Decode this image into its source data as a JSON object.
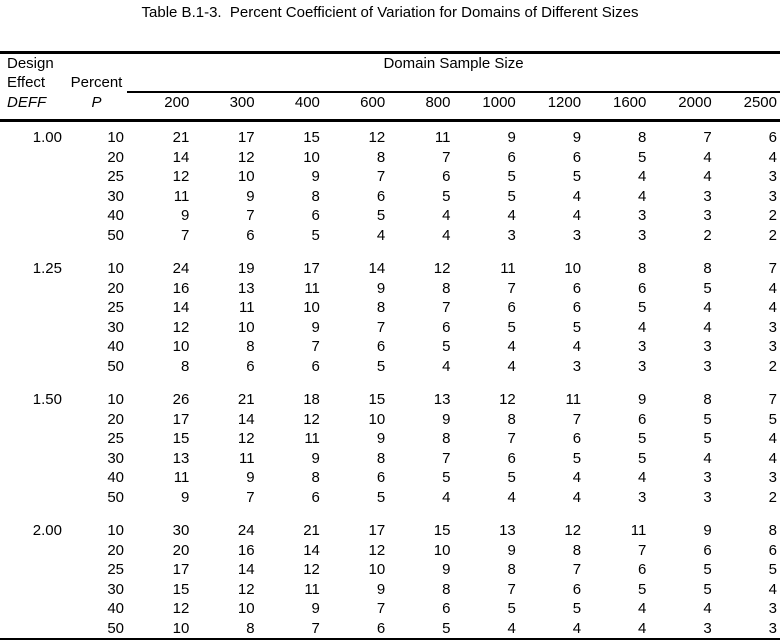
{
  "title": "Table B.1-3.  Percent Coefficient of Variation for Domains of Different Sizes",
  "table": {
    "header": {
      "design_line1": "Design",
      "design_line2": "Effect",
      "design_line3": "DEFF",
      "percent_line1": "Percent",
      "percent_line2": "P",
      "span_label": "Domain Sample Size"
    },
    "size_columns": [
      "200",
      "300",
      "400",
      "600",
      "800",
      "1000",
      "1200",
      "1600",
      "2000",
      "2500"
    ],
    "groups": [
      {
        "deff": "1.00",
        "rows": [
          {
            "p": "10",
            "values": [
              21,
              17,
              15,
              12,
              11,
              9,
              9,
              8,
              7,
              6
            ]
          },
          {
            "p": "20",
            "values": [
              14,
              12,
              10,
              8,
              7,
              6,
              6,
              5,
              4,
              4
            ]
          },
          {
            "p": "25",
            "values": [
              12,
              10,
              9,
              7,
              6,
              5,
              5,
              4,
              4,
              3
            ]
          },
          {
            "p": "30",
            "values": [
              11,
              9,
              8,
              6,
              5,
              5,
              4,
              4,
              3,
              3
            ]
          },
          {
            "p": "40",
            "values": [
              9,
              7,
              6,
              5,
              4,
              4,
              4,
              3,
              3,
              2
            ]
          },
          {
            "p": "50",
            "values": [
              7,
              6,
              5,
              4,
              4,
              3,
              3,
              3,
              2,
              2
            ]
          }
        ]
      },
      {
        "deff": "1.25",
        "rows": [
          {
            "p": "10",
            "values": [
              24,
              19,
              17,
              14,
              12,
              11,
              10,
              8,
              8,
              7
            ]
          },
          {
            "p": "20",
            "values": [
              16,
              13,
              11,
              9,
              8,
              7,
              6,
              6,
              5,
              4
            ]
          },
          {
            "p": "25",
            "values": [
              14,
              11,
              10,
              8,
              7,
              6,
              6,
              5,
              4,
              4
            ]
          },
          {
            "p": "30",
            "values": [
              12,
              10,
              9,
              7,
              6,
              5,
              5,
              4,
              4,
              3
            ]
          },
          {
            "p": "40",
            "values": [
              10,
              8,
              7,
              6,
              5,
              4,
              4,
              3,
              3,
              3
            ]
          },
          {
            "p": "50",
            "values": [
              8,
              6,
              6,
              5,
              4,
              4,
              3,
              3,
              3,
              2
            ]
          }
        ]
      },
      {
        "deff": "1.50",
        "rows": [
          {
            "p": "10",
            "values": [
              26,
              21,
              18,
              15,
              13,
              12,
              11,
              9,
              8,
              7
            ]
          },
          {
            "p": "20",
            "values": [
              17,
              14,
              12,
              10,
              9,
              8,
              7,
              6,
              5,
              5
            ]
          },
          {
            "p": "25",
            "values": [
              15,
              12,
              11,
              9,
              8,
              7,
              6,
              5,
              5,
              4
            ]
          },
          {
            "p": "30",
            "values": [
              13,
              11,
              9,
              8,
              7,
              6,
              5,
              5,
              4,
              4
            ]
          },
          {
            "p": "40",
            "values": [
              11,
              9,
              8,
              6,
              5,
              5,
              4,
              4,
              3,
              3
            ]
          },
          {
            "p": "50",
            "values": [
              9,
              7,
              6,
              5,
              4,
              4,
              4,
              3,
              3,
              2
            ]
          }
        ]
      },
      {
        "deff": "2.00",
        "rows": [
          {
            "p": "10",
            "values": [
              30,
              24,
              21,
              17,
              15,
              13,
              12,
              11,
              9,
              8
            ]
          },
          {
            "p": "20",
            "values": [
              20,
              16,
              14,
              12,
              10,
              9,
              8,
              7,
              6,
              6
            ]
          },
          {
            "p": "25",
            "values": [
              17,
              14,
              12,
              10,
              9,
              8,
              7,
              6,
              5,
              5
            ]
          },
          {
            "p": "30",
            "values": [
              15,
              12,
              11,
              9,
              8,
              7,
              6,
              5,
              5,
              4
            ]
          },
          {
            "p": "40",
            "values": [
              12,
              10,
              9,
              7,
              6,
              5,
              5,
              4,
              4,
              3
            ]
          },
          {
            "p": "50",
            "values": [
              10,
              8,
              7,
              6,
              5,
              4,
              4,
              4,
              3,
              3
            ]
          }
        ]
      }
    ]
  }
}
